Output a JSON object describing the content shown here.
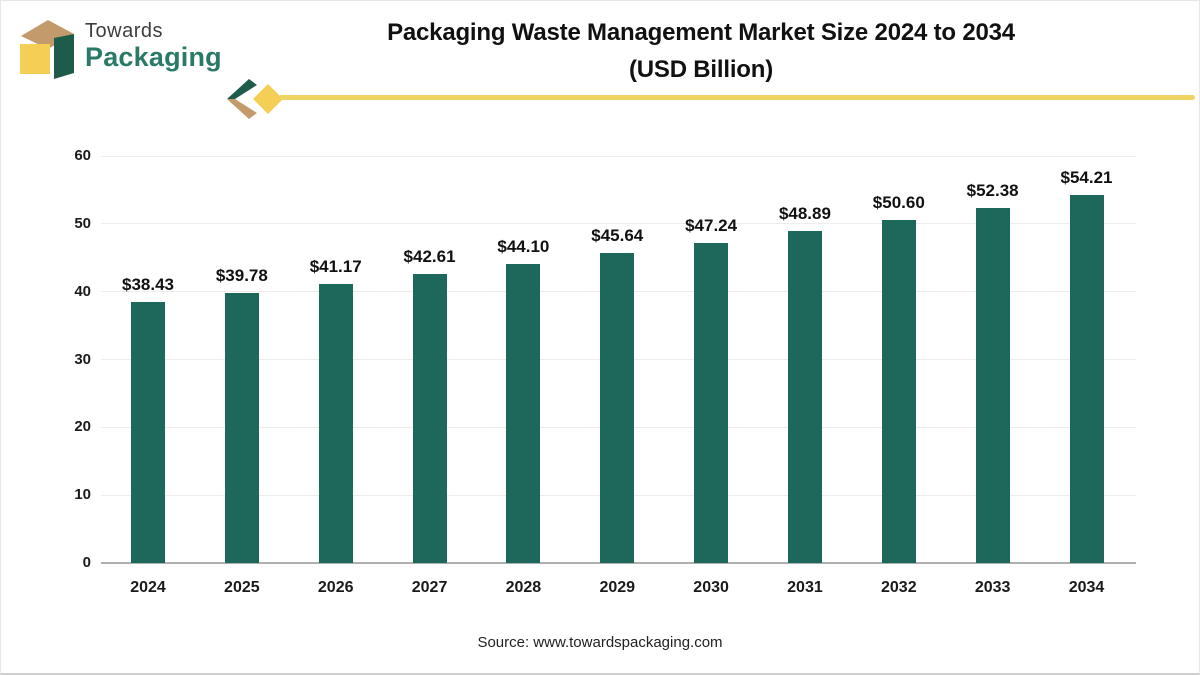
{
  "header": {
    "brand": {
      "line1": "Towards",
      "line2": "Packaging"
    },
    "title": {
      "line1": "Packaging Waste Management Market Size 2024 to 2034",
      "line2": "(USD Billion)"
    }
  },
  "footer": {
    "source": "Source: www.towardspackaging.com"
  },
  "colors": {
    "bar": "#1D685A",
    "brand_green": "#2B7A68",
    "logo_dark_green": "#1E5B4B",
    "logo_yellow": "#F5CE55",
    "logo_tan": "#C39A6B",
    "accent_line": "#EFD464",
    "gridline": "#EDEDED",
    "axis_baseline": "#B0B0B0",
    "text": "#111111"
  },
  "chart_data": {
    "type": "bar",
    "title": "Packaging Waste Management Market Size 2024 to 2034 (USD Billion)",
    "categories": [
      "2024",
      "2025",
      "2026",
      "2027",
      "2028",
      "2029",
      "2030",
      "2031",
      "2032",
      "2033",
      "2034"
    ],
    "values": [
      38.43,
      39.78,
      41.17,
      42.61,
      44.1,
      45.64,
      47.24,
      48.89,
      50.6,
      52.38,
      54.21
    ],
    "value_labels": [
      "$38.43",
      "$39.78",
      "$41.17",
      "$42.61",
      "$44.10",
      "$45.64",
      "$47.24",
      "$48.89",
      "$50.60",
      "$52.38",
      "$54.21"
    ],
    "xlabel": "",
    "ylabel": "",
    "ylim": [
      0,
      60
    ],
    "yticks": [
      0,
      10,
      20,
      30,
      40,
      50,
      60
    ],
    "grid": true,
    "legend": false
  }
}
